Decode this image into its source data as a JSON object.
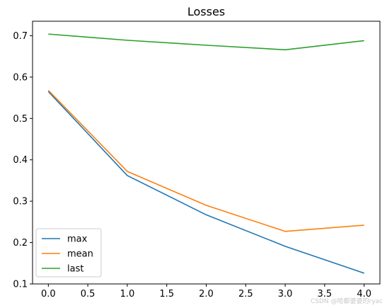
{
  "chart_data": {
    "type": "line",
    "title": "Losses",
    "xlabel": "",
    "ylabel": "",
    "x": [
      0,
      1,
      2,
      3,
      4
    ],
    "xlim": [
      -0.2,
      4.2
    ],
    "ylim": [
      0.1,
      0.735
    ],
    "xticks": [
      "0.0",
      "0.5",
      "1.0",
      "1.5",
      "2.0",
      "2.5",
      "3.0",
      "3.5",
      "4.0"
    ],
    "yticks": [
      "0.1",
      "0.2",
      "0.3",
      "0.4",
      "0.5",
      "0.6",
      "0.7"
    ],
    "grid": false,
    "legend_position": "lower-left",
    "series": [
      {
        "name": "max",
        "color": "#1f77b4",
        "values": [
          0.565,
          0.362,
          0.267,
          0.191,
          0.126
        ]
      },
      {
        "name": "mean",
        "color": "#ff7f0e",
        "values": [
          0.568,
          0.372,
          0.29,
          0.227,
          0.242
        ]
      },
      {
        "name": "last",
        "color": "#2ca02c",
        "values": [
          0.704,
          0.689,
          0.677,
          0.666,
          0.688
        ]
      }
    ]
  },
  "watermark": "CSDN @哈都婆婆的ryac"
}
